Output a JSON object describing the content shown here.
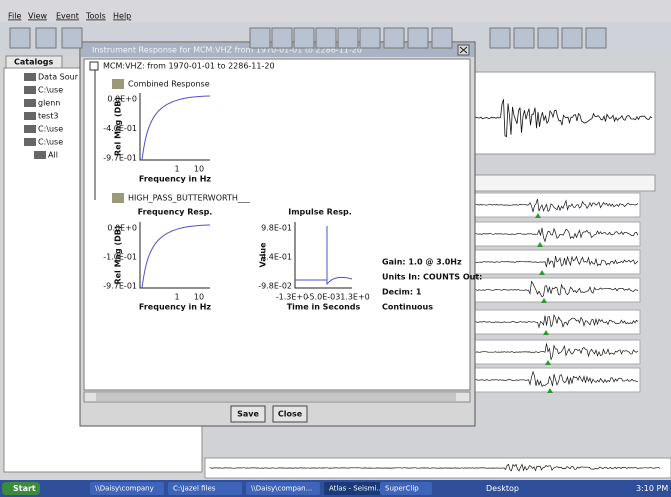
{
  "menu": [
    "File",
    "View",
    "Event",
    "Tools",
    "Help"
  ],
  "catalogs": {
    "tab": "Catalogs",
    "items": [
      "Data Sour",
      "C:\\use",
      "glenn",
      "test3",
      "C:\\use",
      "C:\\use",
      "All"
    ]
  },
  "dialog": {
    "title": "Instrument Response for MCM:VHZ from 1970-01-01 to 2286-11-20",
    "tree_root": "MCM:VHZ: from 1970-01-01 to 2286-11-20",
    "combined": "Combined Response",
    "filter": "HIGH_PASS_BUTTERWORTH___",
    "plots": [
      {
        "ylabel": "Rel Mag (DB)",
        "yticks": [
          "0.0E+0",
          "-4.0E-01",
          "-9.7E-01"
        ],
        "xticks": [
          "1",
          "10"
        ],
        "xlabel": "Frequency in Hz"
      },
      {
        "title": "Frequency Resp.",
        "ylabel": "Rel Mag (DB)",
        "yticks": [
          "0.0E+0",
          "-1.0E-01",
          "-9.7E-01"
        ],
        "xticks": [
          "1",
          "10"
        ],
        "xlabel": "Frequency in Hz"
      },
      {
        "title": "Impulse Resp.",
        "ylabel": "Value",
        "yticks": [
          "9.8E-01",
          "4.4E-01",
          "-9.8E-02"
        ],
        "xticks": [
          "-1.3E+0",
          "-5.0E-03",
          "1.3E+0"
        ],
        "xlabel": "Time in Seconds"
      }
    ],
    "info": [
      "Gain: 1.0 @ 3.0Hz",
      "Units In: COUNTS Out:",
      "Decim: 1",
      "Continuous"
    ],
    "buttons": [
      "Save",
      "Close"
    ]
  },
  "taskbar": {
    "start": "Start",
    "items": [
      "\\\\Daisy\\company",
      "C:\\Jazel files",
      "\\\\Daisy\\compan...",
      "Atlas - Seismi...",
      "SuperClip"
    ],
    "desktop": "Desktop",
    "clock": "3:10 PM"
  }
}
